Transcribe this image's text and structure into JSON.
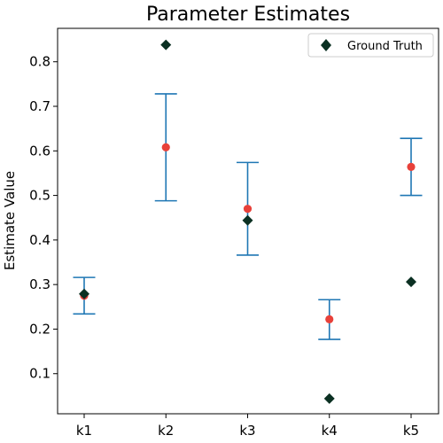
{
  "chart_data": {
    "type": "scatter",
    "title": "Parameter Estimates",
    "xlabel": "",
    "ylabel": "Estimate Value",
    "categories": [
      "k1",
      "k2",
      "k3",
      "k4",
      "k5"
    ],
    "ylim": [
      0.01,
      0.875
    ],
    "yticks": [
      "0.1",
      "0.2",
      "0.3",
      "0.4",
      "0.5",
      "0.6",
      "0.7",
      "0.8"
    ],
    "grid": false,
    "legend_position": "top-right",
    "estimates": [
      0.275,
      0.608,
      0.47,
      0.222,
      0.564
    ],
    "error_bars": [
      {
        "low": 0.234,
        "high": 0.316
      },
      {
        "low": 0.488,
        "high": 0.728
      },
      {
        "low": 0.366,
        "high": 0.574
      },
      {
        "low": 0.177,
        "high": 0.266
      },
      {
        "low": 0.5,
        "high": 0.628
      }
    ],
    "series": [
      {
        "name": "Ground Truth",
        "values": [
          0.279,
          0.838,
          0.444,
          0.044,
          0.306
        ]
      }
    ],
    "colors": {
      "estimate": "#e8413a",
      "error_bar": "#1f77b4",
      "ground_truth": "#0b3022"
    }
  }
}
